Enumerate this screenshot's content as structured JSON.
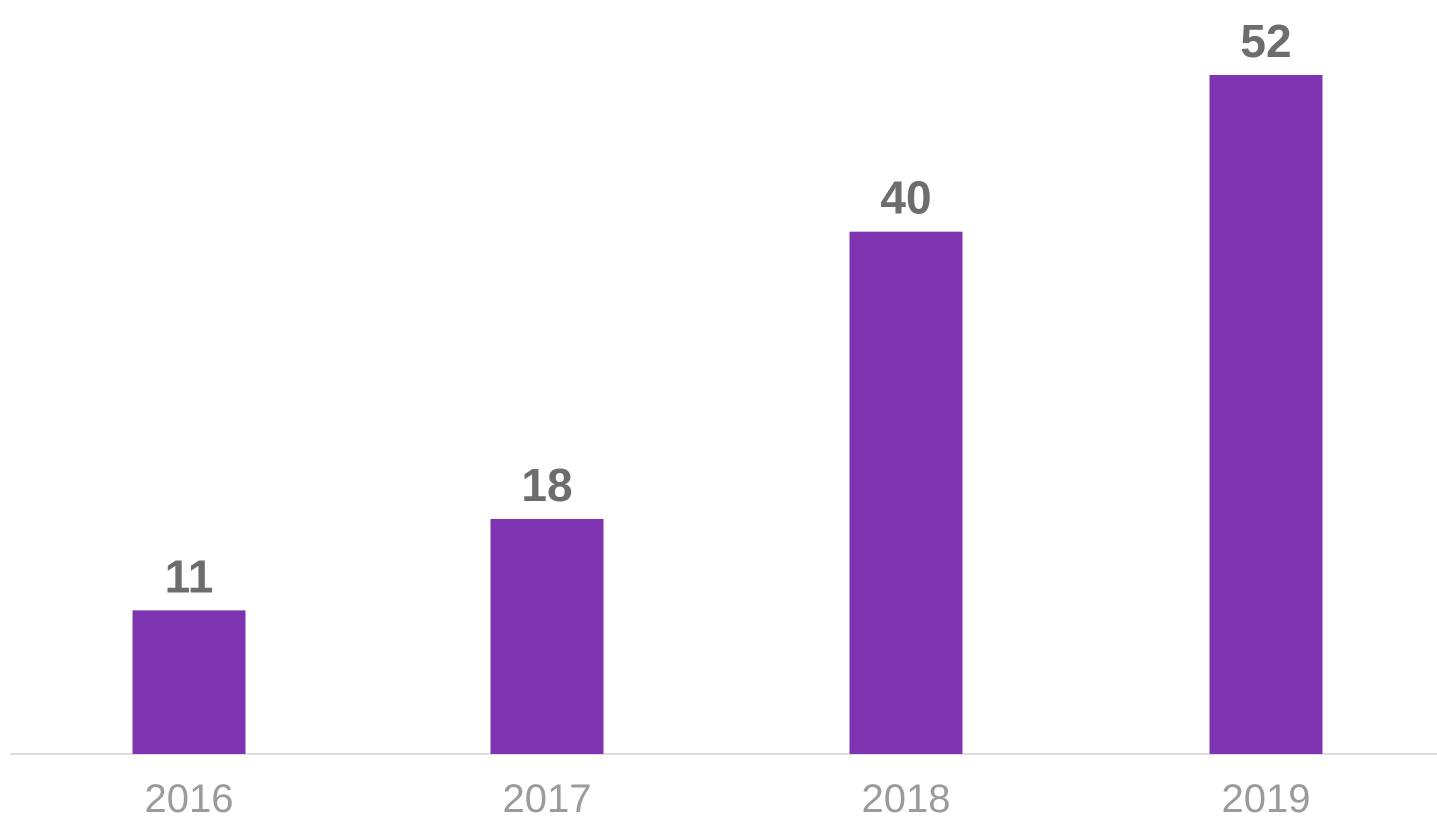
{
  "chart_data": {
    "type": "bar",
    "categories": [
      "2016",
      "2017",
      "2018",
      "2019"
    ],
    "values": [
      11,
      18,
      40,
      52
    ],
    "value_labels": [
      "11",
      "18",
      "40",
      "52"
    ],
    "title": "",
    "xlabel": "",
    "ylabel": "",
    "ylim": [
      0,
      52
    ],
    "grid": false,
    "legend": "none"
  },
  "colors": {
    "bar": "#7f35b2",
    "value_label": "#6d6d6d",
    "tick_label": "#9b9b9b",
    "baseline": "#dddddd"
  }
}
